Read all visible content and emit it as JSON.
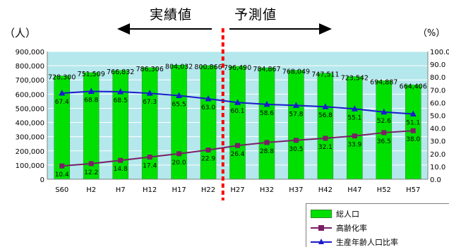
{
  "header": {
    "actual_label": "実績値",
    "forecast_label": "予測値",
    "unit_left": "（人）",
    "unit_right": "（%）"
  },
  "legend": {
    "population": "総人口",
    "aging": "高齢化率",
    "working": "生産年齢人口比率"
  },
  "colors": {
    "bar": "#00e000",
    "bar_edge": "#2a8a2a",
    "plot_bg": "#b4e8ec",
    "aging": "#7a1f66",
    "working": "#1a1acc",
    "divider": "#ff0000",
    "arrow": "#000000"
  },
  "chart_data": {
    "type": "bar",
    "categories": [
      "S60",
      "H2",
      "H7",
      "H12",
      "H17",
      "H22",
      "H27",
      "H32",
      "H37",
      "H42",
      "H47",
      "H52",
      "H57"
    ],
    "series": [
      {
        "name": "総人口",
        "type": "bar",
        "axis": "left",
        "values": [
          728300,
          751509,
          766832,
          786306,
          804032,
          800866,
          796490,
          784867,
          768049,
          747511,
          723542,
          694887,
          664406
        ],
        "labels": [
          "728,300",
          "751,509",
          "766,832",
          "786,306",
          "804,032",
          "800,866",
          "796,490",
          "784,867",
          "768,049",
          "747,511",
          "723,542",
          "694,887",
          "664,406"
        ]
      },
      {
        "name": "高齢化率",
        "type": "line",
        "axis": "right",
        "marker": "square",
        "values": [
          10.4,
          12.2,
          14.8,
          17.4,
          20.0,
          22.9,
          26.4,
          28.8,
          30.5,
          32.1,
          33.9,
          36.5,
          38.0
        ],
        "labels": [
          "10.4",
          "12.2",
          "14.8",
          "17.4",
          "20.0",
          "22.9",
          "26.4",
          "28.8",
          "30.5",
          "32.1",
          "33.9",
          "36.5",
          "38.0"
        ]
      },
      {
        "name": "生産年齢人口比率",
        "type": "line",
        "axis": "right",
        "marker": "triangle",
        "values": [
          67.4,
          68.8,
          68.5,
          67.3,
          65.5,
          63.0,
          60.1,
          58.6,
          57.8,
          56.8,
          55.1,
          52.6,
          51.1
        ],
        "labels": [
          "67.4",
          "68.8",
          "68.5",
          "67.3",
          "65.5",
          "63.0",
          "60.1",
          "58.6",
          "57.8",
          "56.8",
          "55.1",
          "52.6",
          "51.1"
        ]
      }
    ],
    "y_left": {
      "min": 0,
      "max": 900000,
      "ticks": [
        "0",
        "100,000",
        "200,000",
        "300,000",
        "400,000",
        "500,000",
        "600,000",
        "700,000",
        "800,000",
        "900,000"
      ]
    },
    "y_right": {
      "min": 0,
      "max": 100,
      "ticks": [
        "0.0",
        "10.0",
        "20.0",
        "30.0",
        "40.0",
        "50.0",
        "60.0",
        "70.0",
        "80.0",
        "90.0",
        "100.0"
      ]
    },
    "divider_after_category": "H22",
    "grid": true,
    "legend_position": "bottom-right"
  }
}
